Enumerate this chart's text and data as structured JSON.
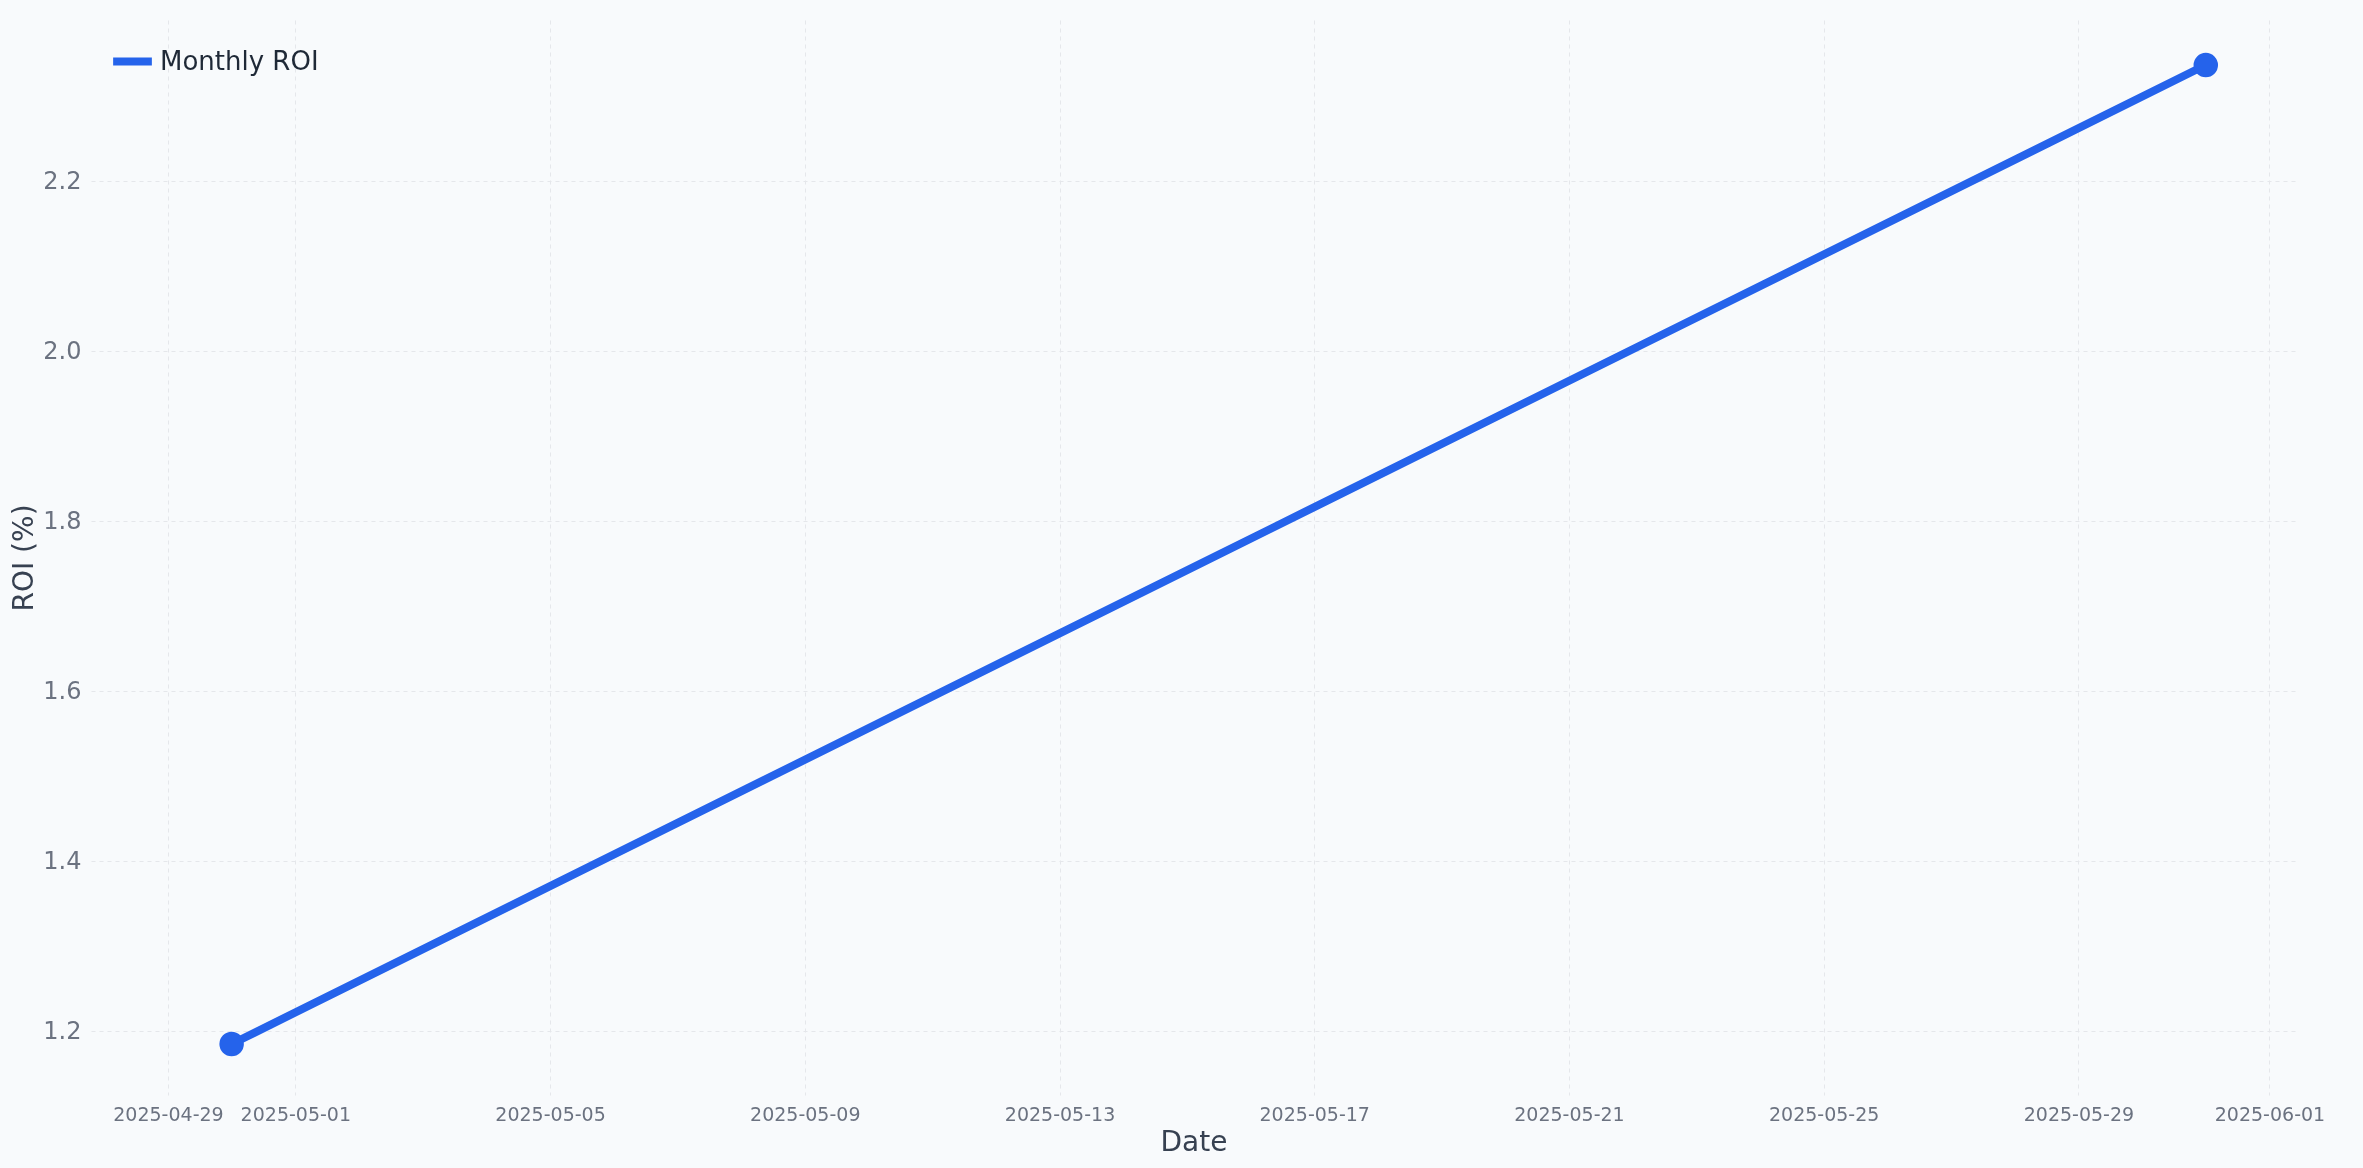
{
  "chart_data": {
    "type": "line",
    "xlabel": "Date",
    "ylabel": "ROI (%)",
    "x": [
      "2025-04-30",
      "2025-05-31"
    ],
    "series": [
      {
        "name": "Monthly ROI",
        "color": "#2563eb",
        "values": [
          1.185,
          2.337
        ]
      }
    ],
    "xlim": [
      "2025-04-27T19:00",
      "2025-06-01T10:00"
    ],
    "xticks": [
      "2025-04-29",
      "2025-05-01",
      "2025-05-05",
      "2025-05-09",
      "2025-05-13",
      "2025-05-17",
      "2025-05-21",
      "2025-05-25",
      "2025-05-29",
      "2025-06-01"
    ],
    "ylim": [
      1.125,
      2.39
    ],
    "yticks": [
      1.2,
      1.4,
      1.6,
      1.8,
      {
        "value": 2,
        "label": "2.0"
      },
      2.2
    ],
    "grid": true,
    "legend": "top left",
    "marker": "circle",
    "line_style": "solid"
  }
}
